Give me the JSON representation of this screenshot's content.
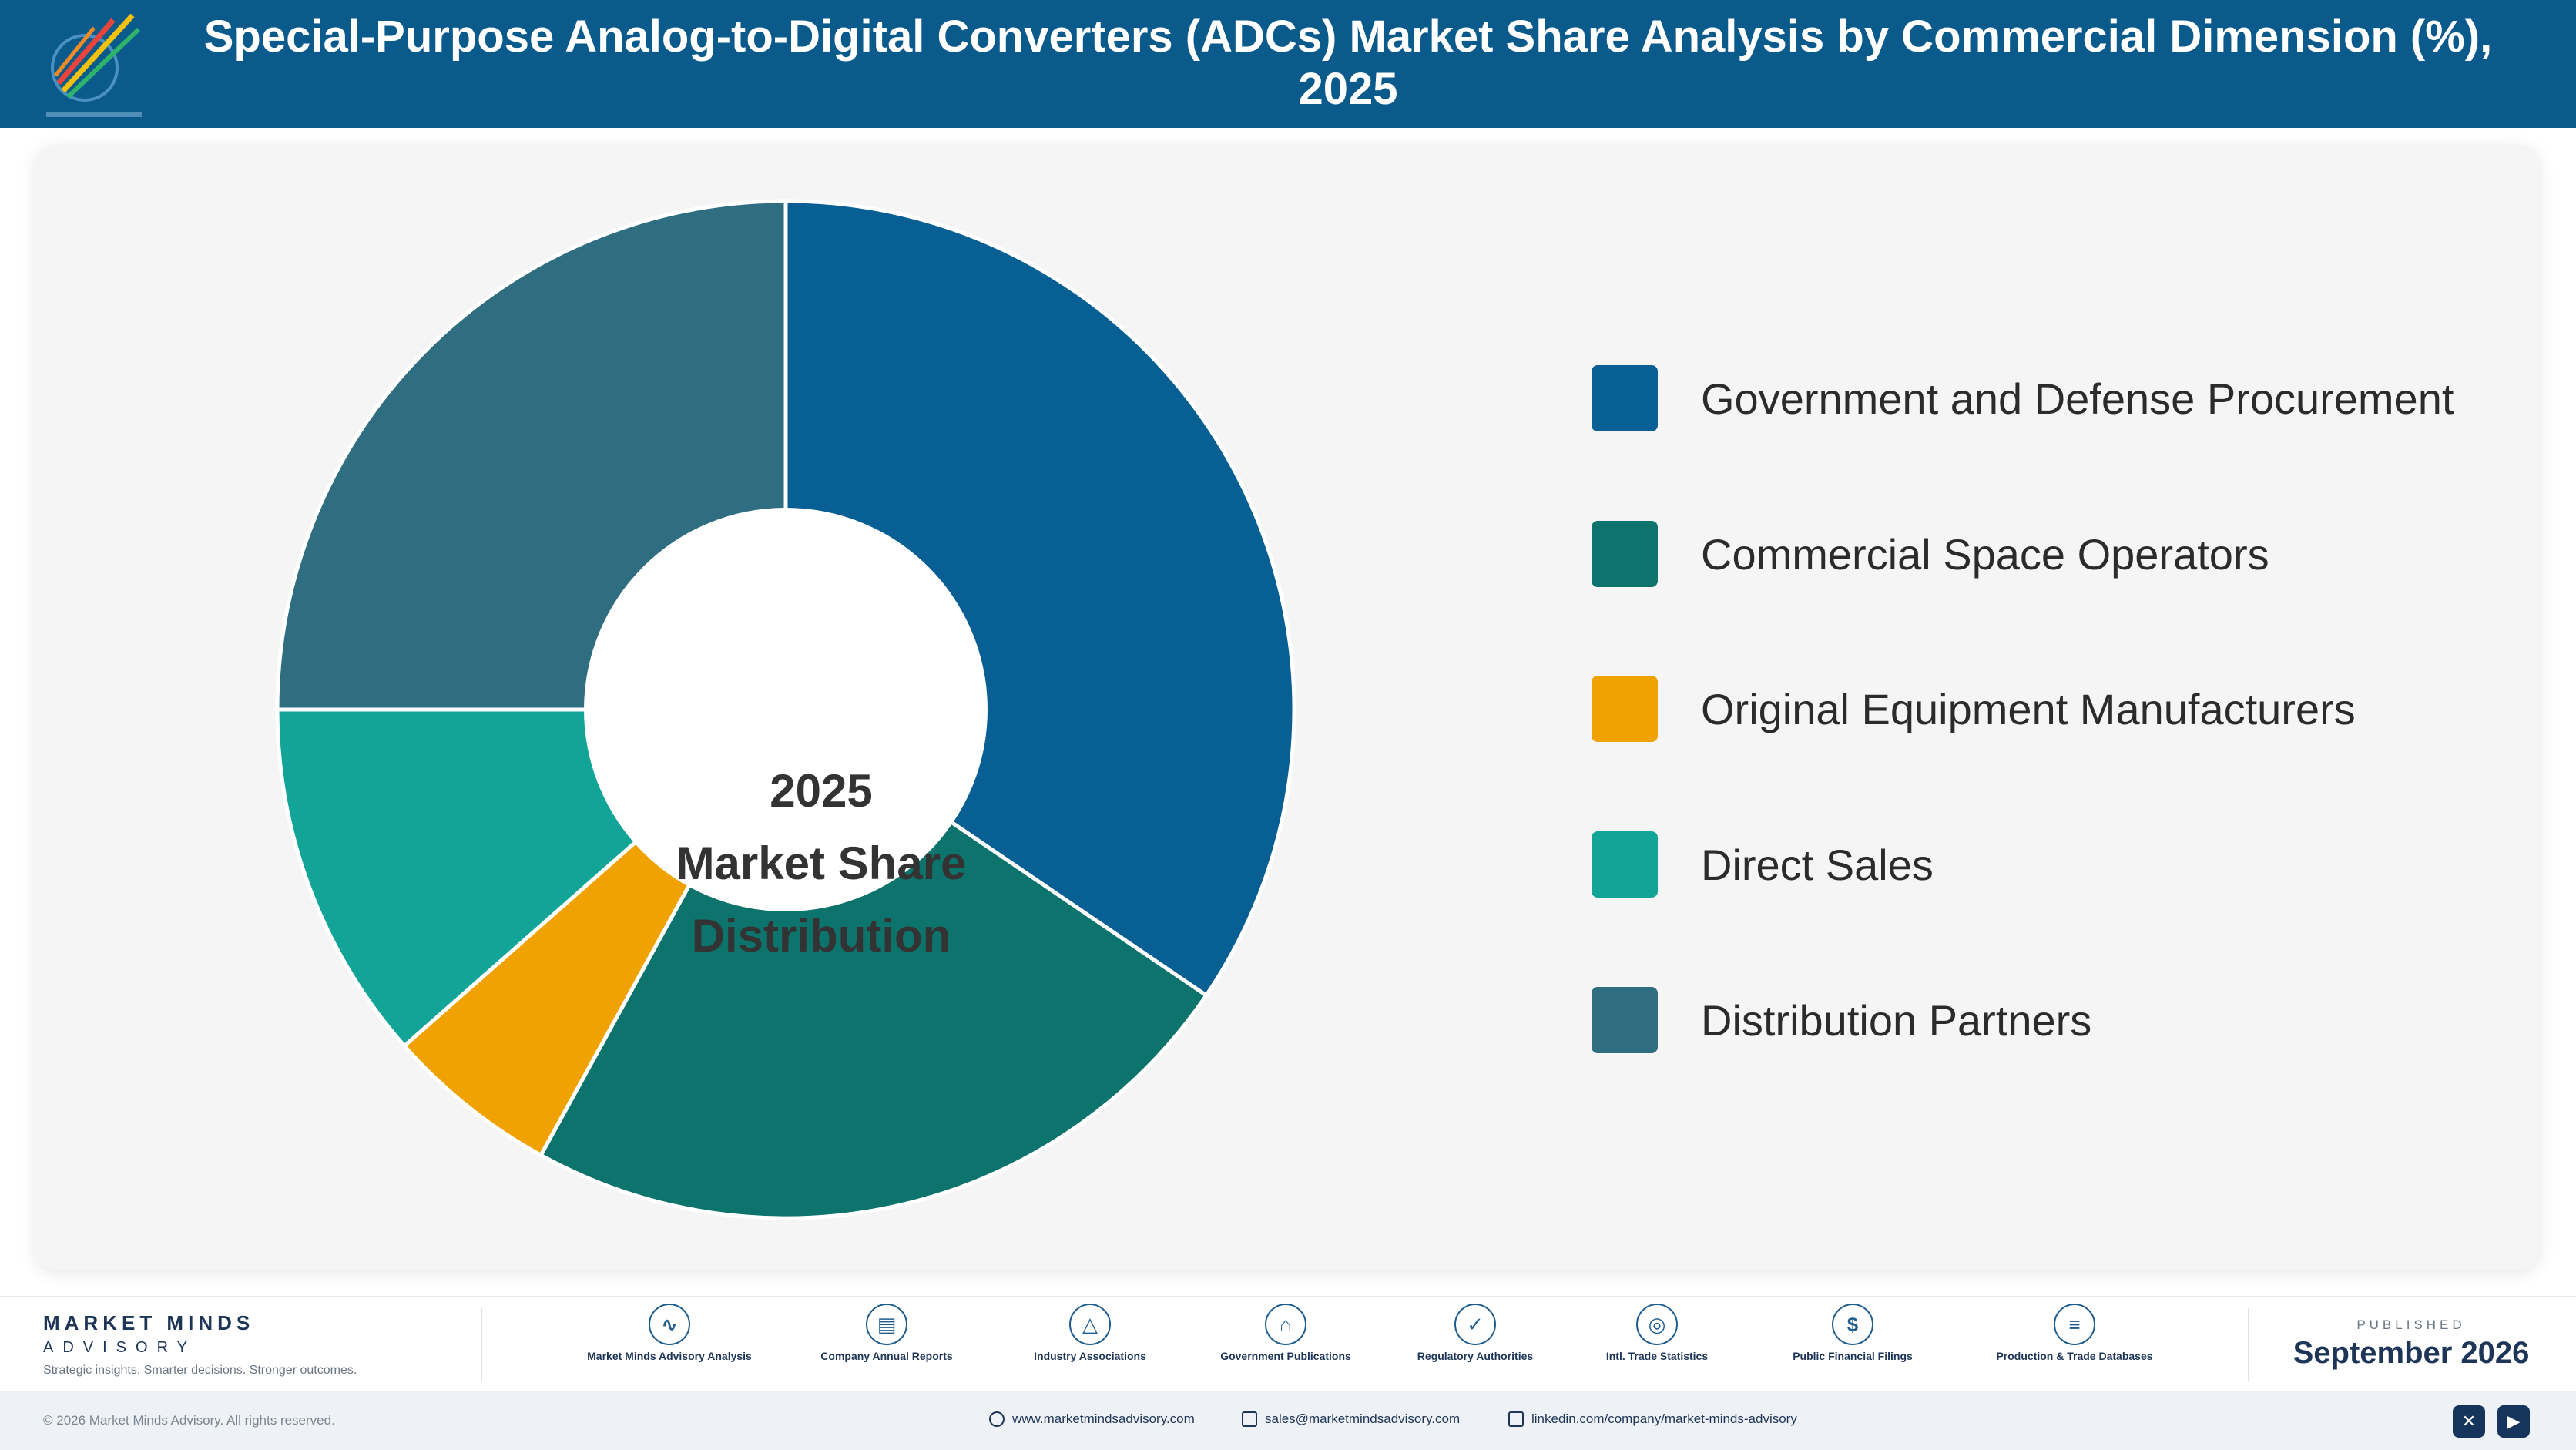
{
  "header": {
    "title": "Special-Purpose Analog-to-Digital Converters (ADCs) Market Share Analysis by Commercial Dimension (%), 2025",
    "logo_icon": "pencil-rocket-logo"
  },
  "chart_data": {
    "type": "pie",
    "style": "donut",
    "center_label": [
      "2025",
      "Market Share",
      "Distribution"
    ],
    "categories": [
      "Government and Defense Procurement",
      "Commercial Space Operators",
      "Original Equipment Manufacturers",
      "Direct Sales",
      "Distribution Partners"
    ],
    "values": [
      34.5,
      23.5,
      5.5,
      11.5,
      25.0
    ],
    "colors": [
      "#075f94",
      "#0c746c",
      "#f0a202",
      "#12a496",
      "#2f6d80"
    ],
    "legend_position": "right"
  },
  "footer": {
    "brand_name": "MARKET MINDS",
    "brand_sub": "ADVISORY",
    "brand_tagline": "Strategic insights. Smarter decisions. Stronger outcomes.",
    "sources": [
      {
        "label": "Market Minds Advisory Analysis",
        "icon": "chart-line-icon",
        "glyph": "∿"
      },
      {
        "label": "Company Annual Reports",
        "icon": "document-icon",
        "glyph": "▤"
      },
      {
        "label": "Industry Associations",
        "icon": "network-icon",
        "glyph": "△"
      },
      {
        "label": "Government Publications",
        "icon": "government-building-icon",
        "glyph": "⌂"
      },
      {
        "label": "Regulatory Authorities",
        "icon": "shield-check-icon",
        "glyph": "✓"
      },
      {
        "label": "Intl. Trade Statistics",
        "icon": "globe-icon",
        "glyph": "◎"
      },
      {
        "label": "Public Financial Filings",
        "icon": "dollar-coin-icon",
        "glyph": "$"
      },
      {
        "label": "Production & Trade Databases",
        "icon": "database-icon",
        "glyph": "≡"
      }
    ],
    "published_label": "PUBLISHED",
    "published_date": "September 2026",
    "copyright": "© 2026 Market Minds Advisory. All rights reserved.",
    "website": "www.marketmindsadvisory.com",
    "email": "sales@marketmindsadvisory.com",
    "linkedin": "linkedin.com/company/market-minds-advisory",
    "social_x_glyph": "✕",
    "social_youtube_glyph": "▶"
  }
}
